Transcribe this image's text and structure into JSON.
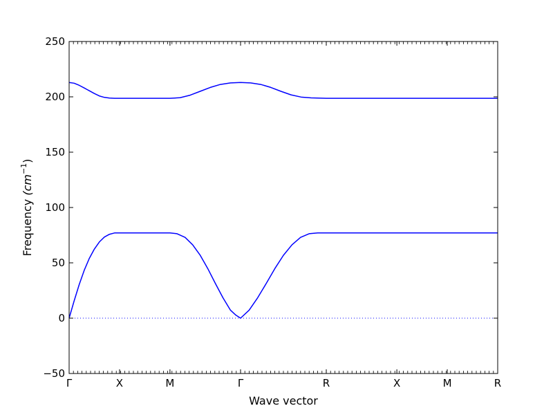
{
  "chart_data": {
    "type": "line",
    "xlabel": "Wave vector",
    "ylabel_main": "Frequency ",
    "ylabel_math": "(cm",
    "ylabel_sup": "−1",
    "ylabel_close": ")",
    "ylim": [
      -50,
      250
    ],
    "yticks": [
      -50,
      0,
      50,
      100,
      150,
      200,
      250
    ],
    "ytick_labels": [
      "−50",
      "0",
      "50",
      "100",
      "150",
      "200",
      "250"
    ],
    "xlim": [
      0,
      4.25
    ],
    "xticks": [
      {
        "label": "Γ",
        "x": 0
      },
      {
        "label": "X",
        "x": 0.5
      },
      {
        "label": "M",
        "x": 1.0
      },
      {
        "label": "Γ",
        "x": 1.7
      },
      {
        "label": "R",
        "x": 2.55
      },
      {
        "label": "X",
        "x": 3.25
      },
      {
        "label": "M",
        "x": 3.75
      },
      {
        "label": "R",
        "x": 4.25
      }
    ],
    "zero_line": {
      "y": 0,
      "style": "dotted",
      "color": "#0000ff"
    },
    "grid": false,
    "line_color": "#0000ff",
    "series": [
      {
        "x": [
          0,
          0.05,
          0.1,
          0.15,
          0.2,
          0.25,
          0.3,
          0.35,
          0.4,
          0.45,
          0.5,
          1.0,
          1.07,
          1.15,
          1.225,
          1.3,
          1.375,
          1.45,
          1.525,
          1.6,
          1.65,
          1.7,
          1.785,
          1.87,
          1.955,
          2.04,
          2.125,
          2.21,
          2.295,
          2.38,
          2.465,
          2.55,
          4.25
        ],
        "values": [
          0,
          15.7,
          30.4,
          43.3,
          54.0,
          62.4,
          68.9,
          73.3,
          75.8,
          77.0,
          77.0,
          77.0,
          76.3,
          73.0,
          66.3,
          56.8,
          44.8,
          31.4,
          18.5,
          7.2,
          3.0,
          0,
          7.2,
          18.5,
          31.4,
          44.8,
          56.8,
          66.3,
          73.0,
          76.3,
          77.0,
          77.0,
          77.0
        ]
      },
      {
        "x": [
          0,
          0.05,
          0.1,
          0.15,
          0.2,
          0.25,
          0.3,
          0.35,
          0.4,
          0.45,
          0.5,
          1.0,
          1.1,
          1.2,
          1.3,
          1.4,
          1.5,
          1.6,
          1.7,
          1.8,
          1.9,
          2.0,
          2.1,
          2.2,
          2.3,
          2.4,
          2.55,
          4.25
        ],
        "values": [
          213,
          212.3,
          210.4,
          208,
          205.5,
          203,
          200.8,
          199.5,
          198.9,
          198.7,
          198.7,
          198.7,
          199.2,
          201.5,
          205,
          208.5,
          211.2,
          212.6,
          213,
          212.6,
          211.2,
          208.5,
          205,
          201.8,
          199.8,
          199.1,
          198.7,
          198.7
        ]
      }
    ]
  }
}
